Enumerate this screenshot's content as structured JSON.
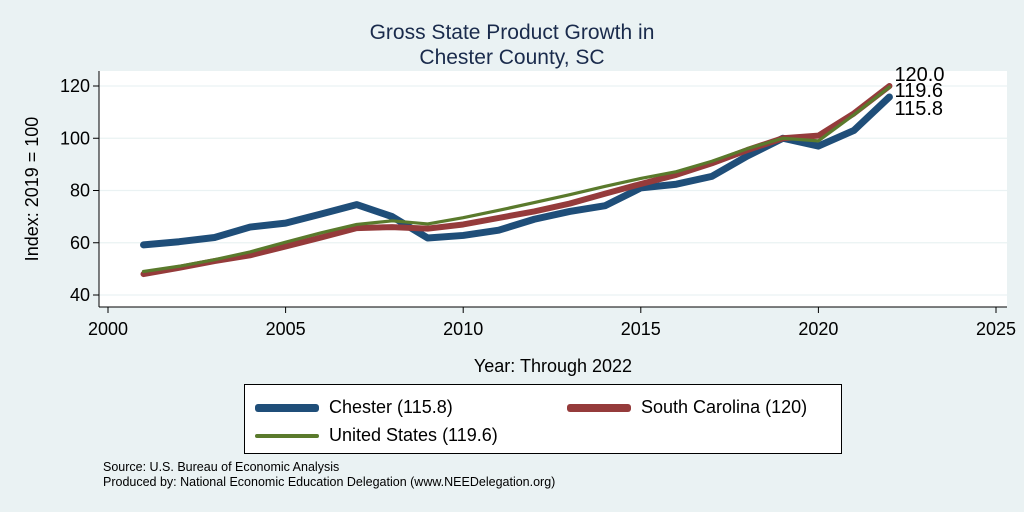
{
  "title_line1": "Gross State Product Growth in",
  "title_line2": "Chester County, SC",
  "chart_data": {
    "type": "line",
    "title": "Gross State Product Growth in Chester County, SC",
    "xlabel": "Year: Through 2022",
    "ylabel": "Index: 2019 = 100",
    "xlim": [
      2000,
      2025
    ],
    "ylim": [
      40,
      120
    ],
    "x_ticks": [
      2000,
      2005,
      2010,
      2015,
      2020,
      2025
    ],
    "y_ticks": [
      40,
      60,
      80,
      100,
      120
    ],
    "grid": true,
    "x": [
      2001,
      2002,
      2003,
      2004,
      2005,
      2006,
      2007,
      2008,
      2009,
      2010,
      2011,
      2012,
      2013,
      2014,
      2015,
      2016,
      2017,
      2018,
      2019,
      2020,
      2021,
      2022
    ],
    "series": [
      {
        "name": "Chester",
        "legend": "Chester  (115.8)",
        "color": "#1f4e79",
        "values": [
          59.2,
          60.4,
          62.0,
          66.0,
          67.5,
          71.0,
          74.6,
          70.0,
          61.8,
          62.8,
          64.8,
          69.0,
          72.0,
          74.2,
          81.0,
          82.4,
          85.4,
          93.2,
          100.0,
          97.0,
          103.0,
          115.8
        ],
        "end_label": "115.8"
      },
      {
        "name": "South Carolina",
        "legend": "South Carolina (120)",
        "color": "#953b3b",
        "values": [
          48.0,
          50.4,
          53.0,
          55.2,
          58.6,
          62.0,
          65.6,
          66.0,
          65.4,
          67.0,
          69.5,
          72.0,
          75.0,
          78.8,
          82.5,
          86.0,
          90.4,
          95.5,
          100.0,
          101.0,
          109.5,
          120.0
        ],
        "end_label": "120.0"
      },
      {
        "name": "United States",
        "legend": "United States (119.6)",
        "color": "#5a7a2c",
        "values": [
          49.0,
          51.0,
          53.5,
          56.5,
          60.2,
          63.8,
          67.0,
          68.4,
          67.2,
          69.6,
          72.4,
          75.4,
          78.4,
          81.6,
          84.6,
          87.2,
          91.2,
          96.0,
          100.0,
          99.0,
          109.0,
          119.6
        ],
        "end_label": "119.6"
      }
    ],
    "legend_position": "bottom"
  },
  "source_line1": "Source: U.S. Bureau of Economic Analysis",
  "source_line2": "Produced by: National Economic Education Delegation (www.NEEDelegation.org)"
}
